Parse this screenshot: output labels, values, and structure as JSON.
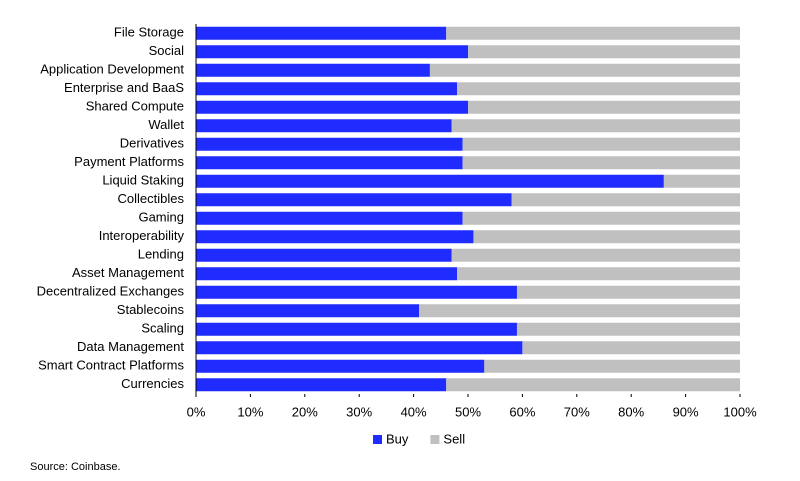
{
  "chart_data": {
    "type": "stacked_barh",
    "categories": [
      "File Storage",
      "Social",
      "Application Development",
      "Enterprise and BaaS",
      "Shared Compute",
      "Wallet",
      "Derivatives",
      "Payment Platforms",
      "Liquid Staking",
      "Collectibles",
      "Gaming",
      "Interoperability",
      "Lending",
      "Asset Management",
      "Decentralized Exchanges",
      "Stablecoins",
      "Scaling",
      "Data Management",
      "Smart Contract Platforms",
      "Currencies"
    ],
    "series": [
      {
        "name": "Buy",
        "color": "#1f2bff",
        "values": [
          46,
          50,
          43,
          48,
          50,
          47,
          49,
          49,
          86,
          58,
          49,
          51,
          47,
          48,
          59,
          41,
          59,
          60,
          53,
          46
        ]
      },
      {
        "name": "Sell",
        "color": "#c0c0c0",
        "values": [
          54,
          50,
          57,
          52,
          50,
          53,
          51,
          51,
          14,
          42,
          51,
          49,
          53,
          52,
          41,
          59,
          41,
          40,
          47,
          54
        ]
      }
    ],
    "xlim": [
      0,
      100
    ],
    "xticks": [
      {
        "value": 0,
        "label": "0%"
      },
      {
        "value": 10,
        "label": "10%"
      },
      {
        "value": 20,
        "label": "20%"
      },
      {
        "value": 30,
        "label": "30%"
      },
      {
        "value": 40,
        "label": "40%"
      },
      {
        "value": 50,
        "label": "50%"
      },
      {
        "value": 60,
        "label": "60%"
      },
      {
        "value": 70,
        "label": "70%"
      },
      {
        "value": 80,
        "label": "80%"
      },
      {
        "value": 90,
        "label": "90%"
      },
      {
        "value": 100,
        "label": "100%"
      }
    ],
    "legend": "bottom",
    "source": "Source: Coinbase."
  }
}
